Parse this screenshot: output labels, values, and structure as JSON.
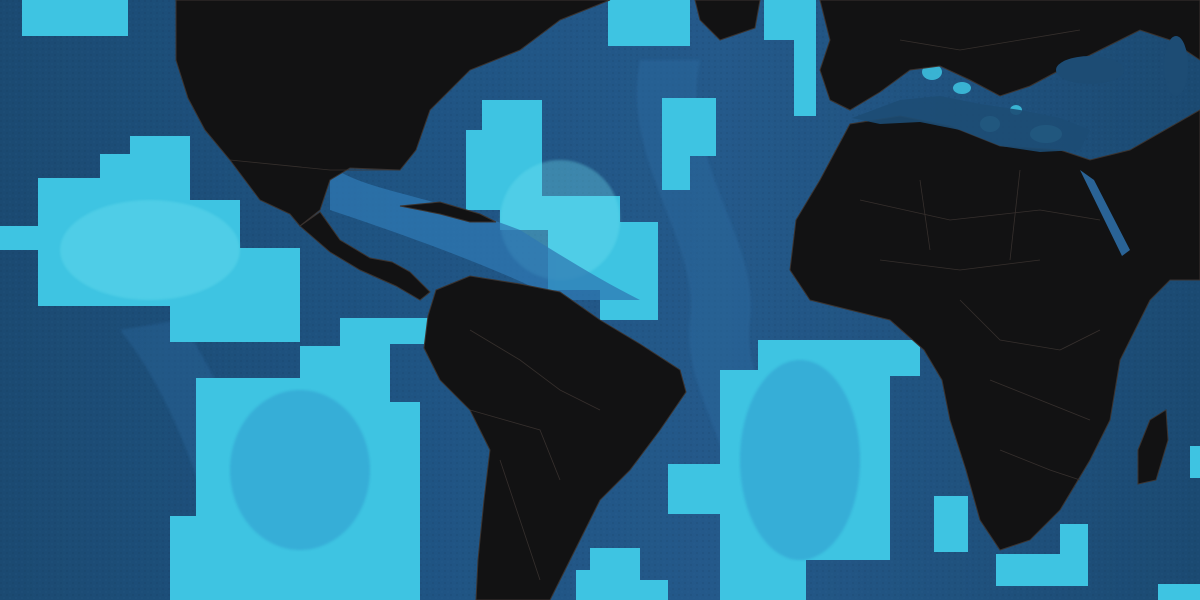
{
  "map": {
    "basemap": "dark",
    "colors": {
      "ocean_deep": "#12304c",
      "ocean": "#1d4c74",
      "ocean_light": "#2a6396",
      "shelf": "#2f79b3",
      "highlight": "#38bfdf",
      "highlight_light": "#56d6ec",
      "land": "#121213",
      "border": "#3a3330"
    },
    "highlight_regions": [
      {
        "name": "north-pacific-block"
      },
      {
        "name": "eastern-pacific-block"
      },
      {
        "name": "south-pacific-block"
      },
      {
        "name": "southeast-pacific-block"
      },
      {
        "name": "western-north-atlantic-block"
      },
      {
        "name": "mid-atlantic-block"
      },
      {
        "name": "south-atlantic-block"
      },
      {
        "name": "north-atlantic-strip"
      },
      {
        "name": "greenland-sea-block"
      },
      {
        "name": "labrador-block"
      },
      {
        "name": "southeast-atlantic-block"
      },
      {
        "name": "agulhas-block"
      },
      {
        "name": "indian-ocean-block"
      }
    ],
    "landmasses": [
      {
        "name": "north-america"
      },
      {
        "name": "central-america"
      },
      {
        "name": "cuba"
      },
      {
        "name": "south-america"
      },
      {
        "name": "africa"
      },
      {
        "name": "europe"
      },
      {
        "name": "madagascar"
      },
      {
        "name": "arabia"
      }
    ]
  }
}
